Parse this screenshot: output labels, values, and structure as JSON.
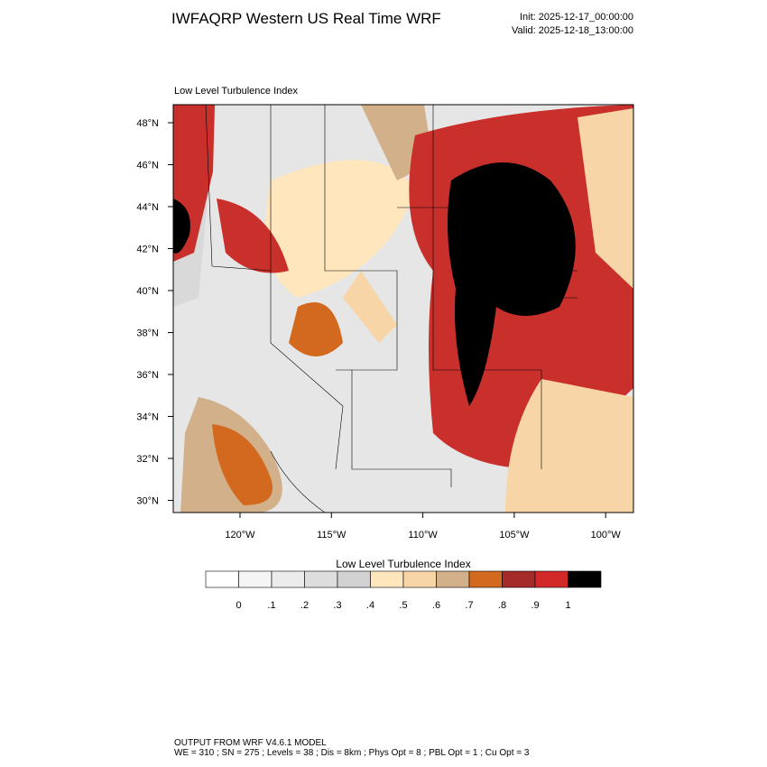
{
  "header": {
    "title": "IWFAQRP Western US Real Time WRF",
    "init": "Init: 2025-12-17_00:00:00",
    "valid": "Valid: 2025-12-18_13:00:00"
  },
  "map": {
    "title": "Low Level Turbulence Index",
    "lat_labels": [
      "48°N",
      "46°N",
      "44°N",
      "42°N",
      "40°N",
      "38°N",
      "36°N",
      "34°N",
      "32°N",
      "30°N"
    ],
    "lon_labels": [
      "120°W",
      "115°W",
      "110°W",
      "105°W",
      "100°W"
    ]
  },
  "colorbar": {
    "title": "Low Level Turbulence Index",
    "colors": [
      "#ffffff",
      "#f5f5f5",
      "#ececec",
      "#dedede",
      "#d2d2d2",
      "#ffe6bc",
      "#f7d5a6",
      "#d1b08a",
      "#d2691e",
      "#a52a2a",
      "#d32828",
      "#000000"
    ],
    "labels": [
      "0",
      ".1",
      ".2",
      ".3",
      ".4",
      ".5",
      ".6",
      ".7",
      ".8",
      ".9",
      "1"
    ]
  },
  "footer": {
    "line1": "OUTPUT FROM WRF V4.6.1 MODEL",
    "line2": "WE = 310 ; SN = 275 ; Levels = 38 ; Dis = 8km ; Phys Opt = 8 ; PBL Opt = 1 ; Cu Opt = 3"
  }
}
